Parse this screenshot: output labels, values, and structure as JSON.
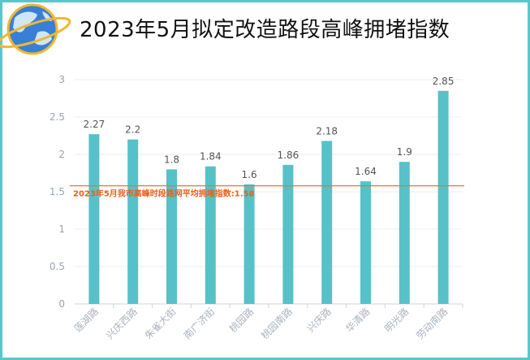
{
  "title": "2023年5月拟定改造路段高峰拥堵指数",
  "icons": {
    "logo": "globe-planet-icon"
  },
  "colors": {
    "bar": "#56c1c8",
    "average_line": "#e0783a",
    "average_label": "#e8611c",
    "border": "#56c7cc"
  },
  "chart_data": {
    "type": "bar",
    "title": "2023年5月拟定改造路段高峰拥堵指数",
    "xlabel": "",
    "ylabel": "",
    "categories": [
      "莲湖路",
      "兴庆西路",
      "朱雀大街",
      "南广济街",
      "桃园路",
      "桃园南路",
      "兴庆路",
      "华清路",
      "明光路",
      "劳动南路"
    ],
    "values": [
      2.27,
      2.2,
      1.8,
      1.84,
      1.6,
      1.86,
      2.18,
      1.64,
      1.9,
      2.85
    ],
    "data_labels": [
      "2.27",
      "2.2",
      "1.8",
      "1.84",
      "1.6",
      "1.86",
      "2.18",
      "1.64",
      "1.9",
      "2.85"
    ],
    "ylim": [
      0,
      3
    ],
    "yticks": [
      "0",
      "0.5",
      "1",
      "1.5",
      "2",
      "2.5",
      "3"
    ],
    "grid": true,
    "average": {
      "value": 1.58,
      "label": "2023年5月我市高峰时段路网平均拥堵指数:1.58"
    }
  }
}
